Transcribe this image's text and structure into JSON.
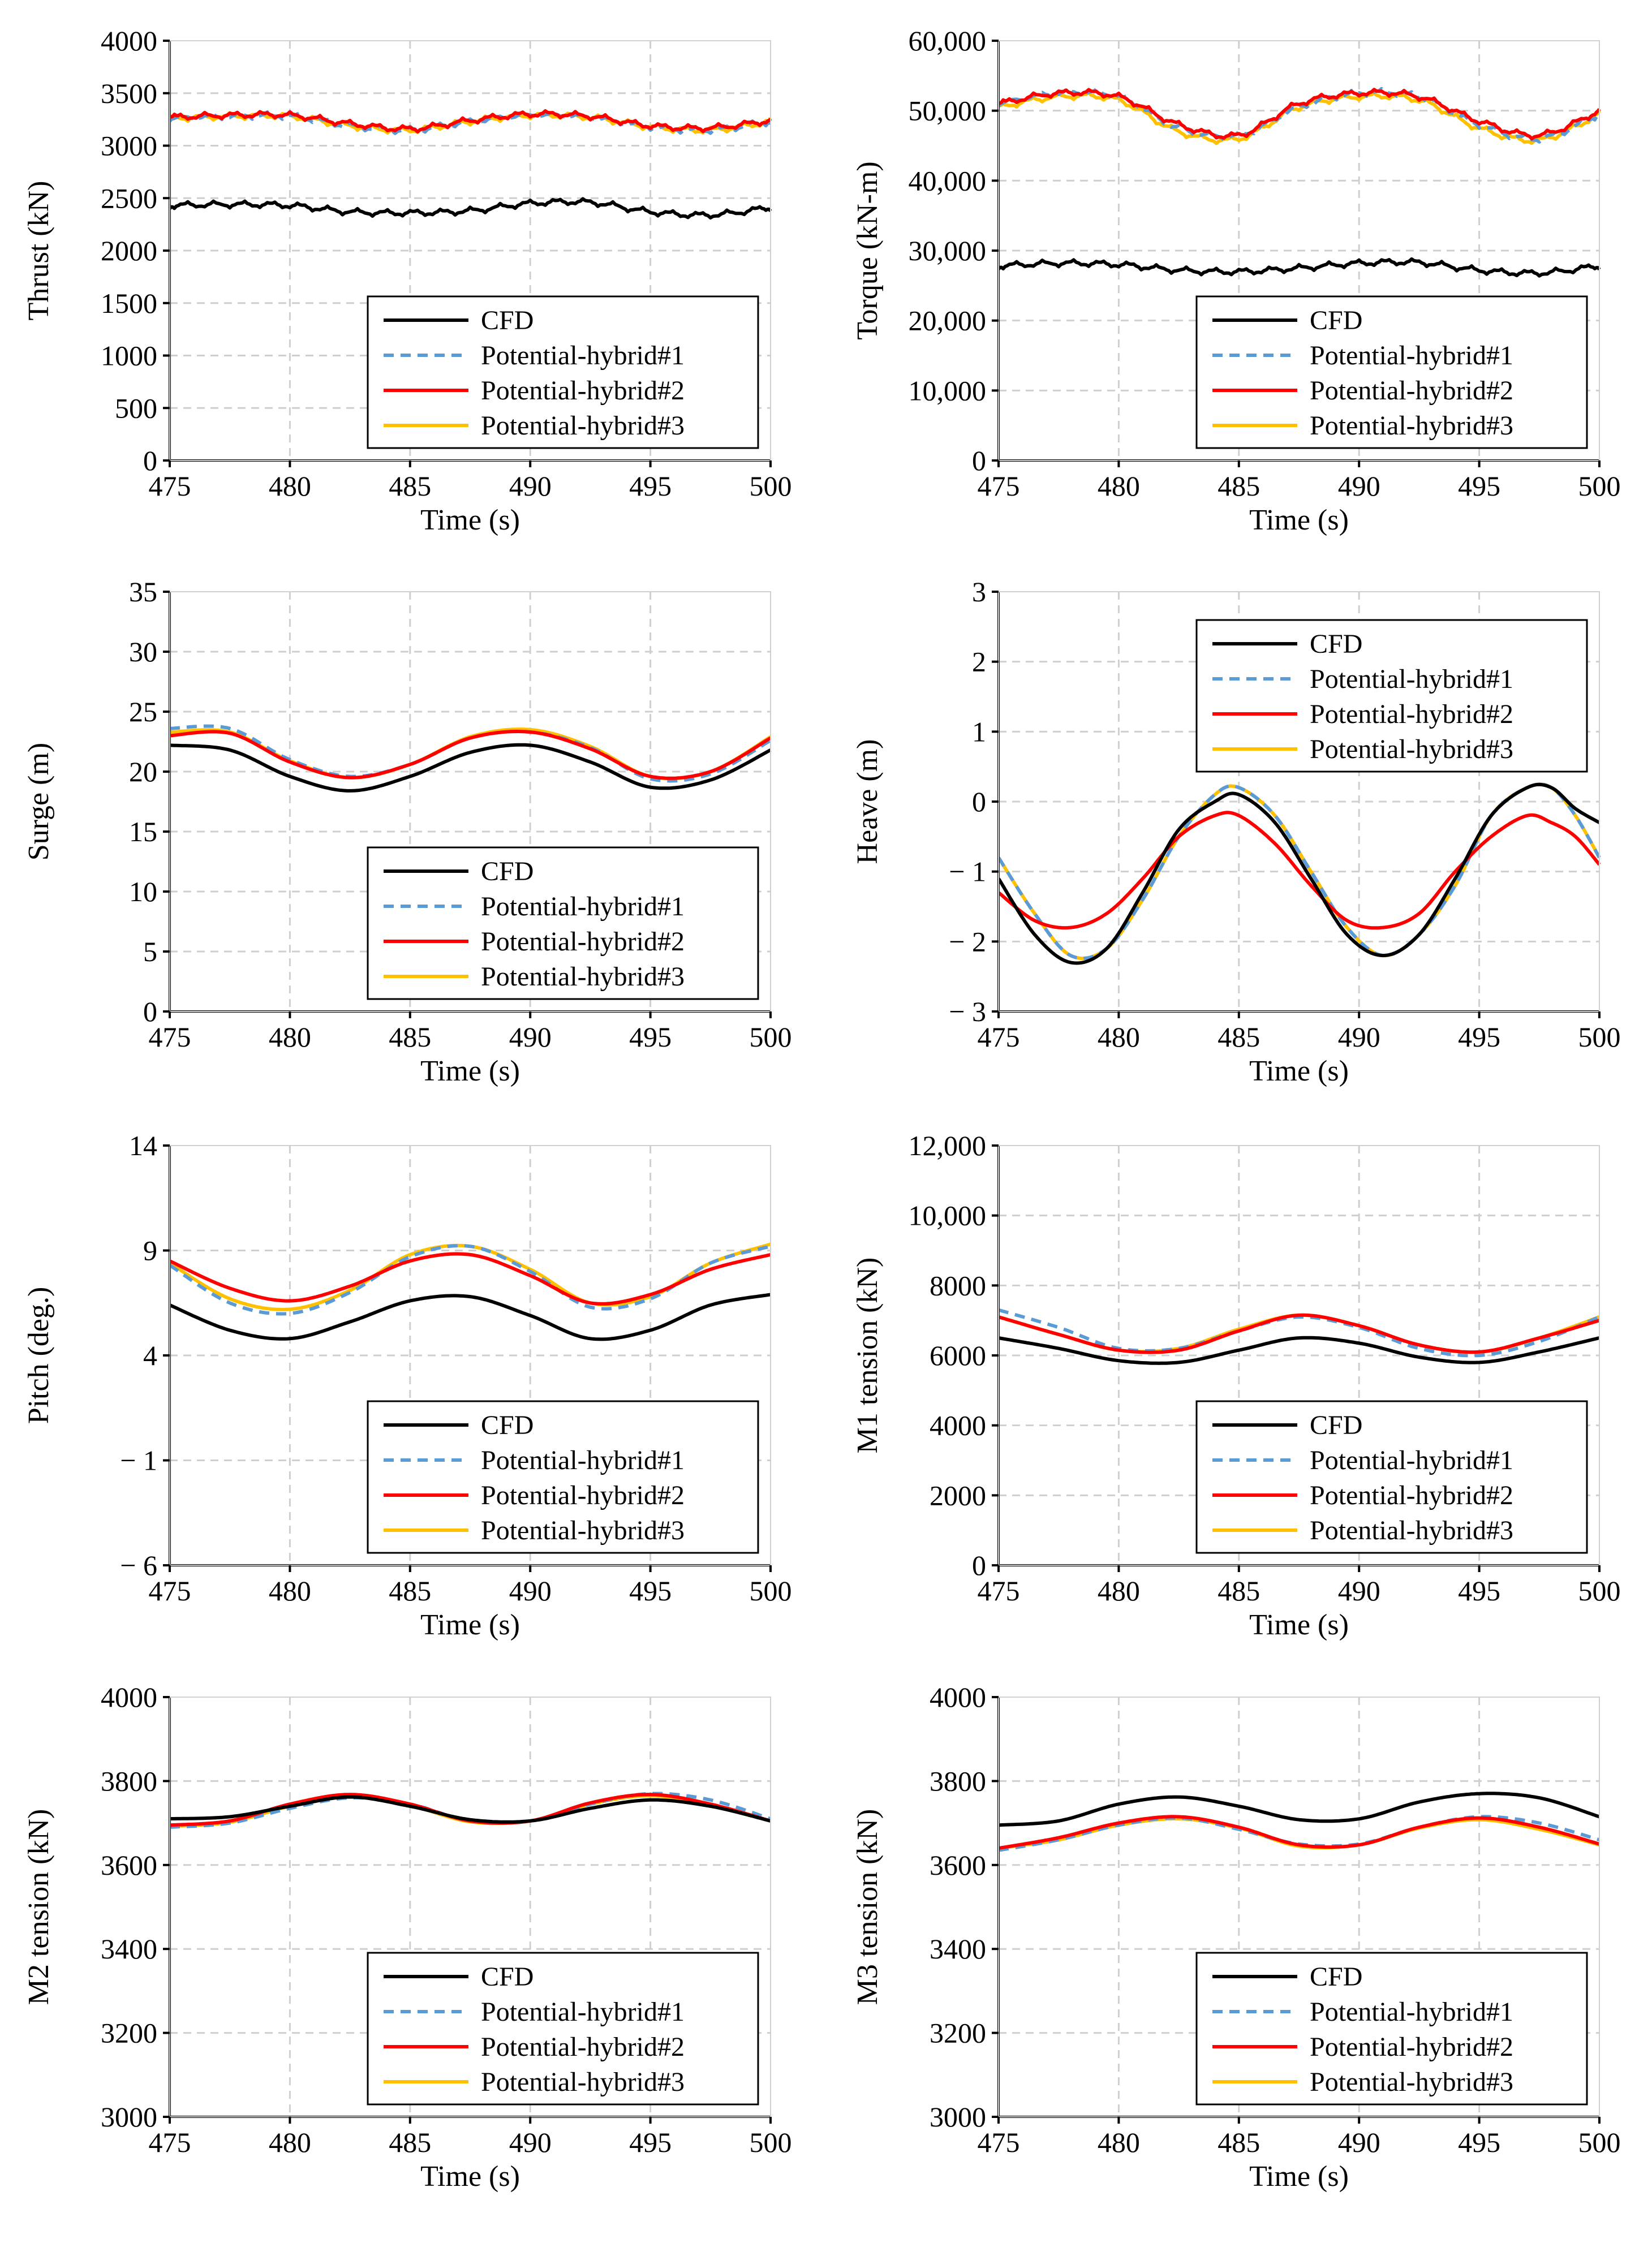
{
  "figure": {
    "series_names": [
      "CFD",
      "Potential-hybrid#1",
      "Potential-hybrid#2",
      "Potential-hybrid#3"
    ],
    "series_colors": [
      "#000000",
      "#5b9bd5",
      "#ff0000",
      "#ffc000"
    ],
    "series_dash": [
      "solid",
      "dashed",
      "solid",
      "solid"
    ]
  },
  "chart_data": [
    {
      "type": "line",
      "xlabel": "Time (s)",
      "ylabel": "Thrust (kN)",
      "xlim": [
        475,
        500
      ],
      "ylim": [
        0,
        4000
      ],
      "xticks": [
        475,
        480,
        485,
        490,
        495,
        500
      ],
      "xtick_labels": [
        "475",
        "480",
        "485",
        "490",
        "495",
        "500"
      ],
      "yticks": [
        0,
        500,
        1000,
        1500,
        2000,
        2500,
        3000,
        3500,
        4000
      ],
      "ytick_labels": [
        "0",
        "500",
        "1000",
        "1500",
        "2000",
        "2500",
        "3000",
        "3500",
        "4000"
      ],
      "legend_position": "bottom-right",
      "grid": true,
      "x": [
        475,
        477.5,
        480,
        482.5,
        485,
        487.5,
        490,
        492.5,
        495,
        497.5,
        500
      ],
      "series": [
        {
          "name": "CFD",
          "values": [
            2430,
            2440,
            2430,
            2370,
            2360,
            2380,
            2450,
            2460,
            2370,
            2340,
            2410
          ]
        },
        {
          "name": "Potential-hybrid#1",
          "values": [
            3260,
            3280,
            3280,
            3190,
            3150,
            3230,
            3290,
            3270,
            3180,
            3150,
            3230
          ]
        },
        {
          "name": "Potential-hybrid#2",
          "values": [
            3270,
            3290,
            3290,
            3210,
            3160,
            3240,
            3300,
            3280,
            3190,
            3170,
            3240
          ]
        },
        {
          "name": "Potential-hybrid#3",
          "values": [
            3260,
            3280,
            3280,
            3190,
            3150,
            3230,
            3290,
            3270,
            3180,
            3150,
            3230
          ]
        }
      ],
      "jitter": true
    },
    {
      "type": "line",
      "xlabel": "Time (s)",
      "ylabel": "Torque (kN-m)",
      "xlim": [
        475,
        500
      ],
      "ylim": [
        0,
        60000
      ],
      "xticks": [
        475,
        480,
        485,
        490,
        495,
        500
      ],
      "xtick_labels": [
        "475",
        "480",
        "485",
        "490",
        "495",
        "500"
      ],
      "yticks": [
        0,
        10000,
        20000,
        30000,
        40000,
        50000,
        60000
      ],
      "ytick_labels": [
        "0",
        "10,000",
        "20,000",
        "30,000",
        "40,000",
        "50,000",
        "60,000"
      ],
      "legend_position": "bottom-right",
      "grid": true,
      "x": [
        475,
        477.5,
        480,
        482.5,
        485,
        487.5,
        490,
        492.5,
        495,
        497.5,
        500
      ],
      "series": [
        {
          "name": "CFD",
          "values": [
            27800,
            28200,
            28000,
            27200,
            27000,
            27500,
            28200,
            28300,
            27200,
            26800,
            27800
          ]
        },
        {
          "name": "Potential-hybrid#1",
          "values": [
            51000,
            52500,
            52000,
            47500,
            46500,
            50500,
            52500,
            52000,
            48000,
            46000,
            49500
          ]
        },
        {
          "name": "Potential-hybrid#2",
          "values": [
            51000,
            52500,
            52000,
            48000,
            46500,
            51000,
            52500,
            52000,
            48500,
            46500,
            50000
          ]
        },
        {
          "name": "Potential-hybrid#3",
          "values": [
            50500,
            52000,
            51500,
            47000,
            46000,
            50500,
            52000,
            51500,
            47500,
            45800,
            49500
          ]
        }
      ],
      "jitter": true
    },
    {
      "type": "line",
      "xlabel": "Time (s)",
      "ylabel": "Surge (m)",
      "xlim": [
        475,
        500
      ],
      "ylim": [
        0,
        35
      ],
      "xticks": [
        475,
        480,
        485,
        490,
        495,
        500
      ],
      "xtick_labels": [
        "475",
        "480",
        "485",
        "490",
        "495",
        "500"
      ],
      "yticks": [
        0,
        5,
        10,
        15,
        20,
        25,
        30,
        35
      ],
      "ytick_labels": [
        "0",
        "5",
        "10",
        "15",
        "20",
        "25",
        "30",
        "35"
      ],
      "legend_position": "bottom-right",
      "grid": true,
      "x": [
        475,
        477.5,
        480,
        482.5,
        485,
        487.5,
        490,
        492.5,
        495,
        497.5,
        500
      ],
      "series": [
        {
          "name": "CFD",
          "values": [
            22.2,
            21.8,
            19.6,
            18.4,
            19.6,
            21.6,
            22.2,
            20.8,
            18.7,
            19.3,
            21.8
          ]
        },
        {
          "name": "Potential-hybrid#1",
          "values": [
            23.6,
            23.6,
            21.0,
            19.6,
            20.6,
            22.8,
            23.3,
            22.0,
            19.4,
            19.8,
            22.6
          ]
        },
        {
          "name": "Potential-hybrid#2",
          "values": [
            23.0,
            23.2,
            20.8,
            19.5,
            20.6,
            22.8,
            23.3,
            21.9,
            19.6,
            20.0,
            22.8
          ]
        },
        {
          "name": "Potential-hybrid#3",
          "values": [
            23.3,
            23.3,
            20.9,
            19.5,
            20.6,
            22.9,
            23.5,
            22.1,
            19.6,
            20.0,
            22.9
          ]
        }
      ],
      "jitter": false
    },
    {
      "type": "line",
      "xlabel": "Time (s)",
      "ylabel": "Heave (m)",
      "xlim": [
        475,
        500
      ],
      "ylim": [
        -3,
        3
      ],
      "xticks": [
        475,
        480,
        485,
        490,
        495,
        500
      ],
      "xtick_labels": [
        "475",
        "480",
        "485",
        "490",
        "495",
        "500"
      ],
      "yticks": [
        -3,
        -2,
        -1,
        0,
        1,
        2,
        3
      ],
      "ytick_labels": [
        "− 3",
        "− 2",
        "− 1",
        "0",
        "1",
        "2",
        "3"
      ],
      "legend_position": "top-right",
      "grid": true,
      "x": [
        475,
        476.5,
        478,
        479.5,
        481,
        482.5,
        484,
        485,
        486.5,
        488,
        489.5,
        491,
        492.5,
        494,
        495.5,
        497,
        498,
        499,
        500
      ],
      "series": [
        {
          "name": "CFD",
          "values": [
            -1.1,
            -1.9,
            -2.3,
            -2.1,
            -1.3,
            -0.4,
            0.0,
            0.1,
            -0.3,
            -1.1,
            -1.9,
            -2.2,
            -1.9,
            -1.1,
            -0.2,
            0.2,
            0.2,
            -0.1,
            -0.3
          ]
        },
        {
          "name": "Potential-hybrid#1",
          "values": [
            -0.8,
            -1.6,
            -2.2,
            -2.1,
            -1.4,
            -0.5,
            0.1,
            0.2,
            -0.2,
            -1.0,
            -1.8,
            -2.2,
            -1.9,
            -1.2,
            -0.2,
            0.2,
            0.2,
            -0.2,
            -0.8
          ]
        },
        {
          "name": "Potential-hybrid#2",
          "values": [
            -1.3,
            -1.7,
            -1.8,
            -1.6,
            -1.1,
            -0.5,
            -0.2,
            -0.2,
            -0.6,
            -1.2,
            -1.7,
            -1.8,
            -1.6,
            -1.0,
            -0.5,
            -0.2,
            -0.3,
            -0.5,
            -0.9
          ]
        },
        {
          "name": "Potential-hybrid#3",
          "values": [
            -0.8,
            -1.6,
            -2.2,
            -2.1,
            -1.4,
            -0.5,
            0.1,
            0.2,
            -0.2,
            -1.0,
            -1.8,
            -2.2,
            -1.9,
            -1.2,
            -0.2,
            0.2,
            0.2,
            -0.2,
            -0.8
          ]
        }
      ],
      "jitter": false
    },
    {
      "type": "line",
      "xlabel": "Time (s)",
      "ylabel": "Pitch (deg.)",
      "xlim": [
        475,
        500
      ],
      "ylim": [
        -6,
        14
      ],
      "xticks": [
        475,
        480,
        485,
        490,
        495,
        500
      ],
      "xtick_labels": [
        "475",
        "480",
        "485",
        "490",
        "495",
        "500"
      ],
      "yticks": [
        -6,
        -1,
        4,
        9,
        14
      ],
      "ytick_labels": [
        "− 6",
        "− 1",
        "4",
        "9",
        "14"
      ],
      "legend_position": "bottom-right",
      "grid": true,
      "x": [
        475,
        477.5,
        480,
        482.5,
        485,
        487.5,
        490,
        492.5,
        495,
        497.5,
        500
      ],
      "series": [
        {
          "name": "CFD",
          "values": [
            6.4,
            5.2,
            4.8,
            5.6,
            6.6,
            6.8,
            5.9,
            4.8,
            5.2,
            6.4,
            6.9
          ]
        },
        {
          "name": "Potential-hybrid#1",
          "values": [
            8.3,
            6.5,
            6.0,
            7.0,
            8.7,
            9.2,
            8.0,
            6.3,
            6.7,
            8.4,
            9.2
          ]
        },
        {
          "name": "Potential-hybrid#2",
          "values": [
            8.5,
            7.2,
            6.6,
            7.3,
            8.5,
            8.8,
            7.8,
            6.5,
            6.9,
            8.1,
            8.8
          ]
        },
        {
          "name": "Potential-hybrid#3",
          "values": [
            8.4,
            6.7,
            6.2,
            7.1,
            8.8,
            9.2,
            8.1,
            6.5,
            6.8,
            8.4,
            9.3
          ]
        }
      ],
      "jitter": false
    },
    {
      "type": "line",
      "xlabel": "Time (s)",
      "ylabel": "M1 tension (kN)",
      "xlim": [
        475,
        500
      ],
      "ylim": [
        0,
        12000
      ],
      "xticks": [
        475,
        480,
        485,
        490,
        495,
        500
      ],
      "xtick_labels": [
        "475",
        "480",
        "485",
        "490",
        "495",
        "500"
      ],
      "yticks": [
        0,
        2000,
        4000,
        6000,
        8000,
        10000,
        12000
      ],
      "ytick_labels": [
        "0",
        "2000",
        "4000",
        "6000",
        "8000",
        "10,000",
        "12,000"
      ],
      "legend_position": "bottom-right",
      "grid": true,
      "x": [
        475,
        477.5,
        480,
        482.5,
        485,
        487.5,
        490,
        492.5,
        495,
        497.5,
        500
      ],
      "series": [
        {
          "name": "CFD",
          "values": [
            6500,
            6200,
            5850,
            5800,
            6150,
            6500,
            6350,
            5950,
            5800,
            6100,
            6500
          ]
        },
        {
          "name": "Potential-hybrid#1",
          "values": [
            7300,
            6800,
            6200,
            6200,
            6700,
            7100,
            6800,
            6200,
            6000,
            6400,
            7100
          ]
        },
        {
          "name": "Potential-hybrid#2",
          "values": [
            7100,
            6600,
            6150,
            6150,
            6700,
            7150,
            6850,
            6300,
            6100,
            6500,
            7000
          ]
        },
        {
          "name": "Potential-hybrid#3",
          "values": [
            7100,
            6600,
            6150,
            6200,
            6750,
            7150,
            6850,
            6300,
            6100,
            6500,
            7100
          ]
        }
      ],
      "jitter": false
    },
    {
      "type": "line",
      "xlabel": "Time (s)",
      "ylabel": "M2 tension (kN)",
      "xlim": [
        475,
        500
      ],
      "ylim": [
        3000,
        4000
      ],
      "xticks": [
        475,
        480,
        485,
        490,
        495,
        500
      ],
      "xtick_labels": [
        "475",
        "480",
        "485",
        "490",
        "495",
        "500"
      ],
      "yticks": [
        3000,
        3200,
        3400,
        3600,
        3800,
        4000
      ],
      "ytick_labels": [
        "3000",
        "3200",
        "3400",
        "3600",
        "3800",
        "4000"
      ],
      "legend_position": "bottom-right",
      "grid": true,
      "x": [
        475,
        477.5,
        480,
        482.5,
        485,
        487.5,
        490,
        492.5,
        495,
        497.5,
        500
      ],
      "series": [
        {
          "name": "CFD",
          "values": [
            3710,
            3715,
            3740,
            3762,
            3740,
            3708,
            3705,
            3735,
            3755,
            3740,
            3705
          ]
        },
        {
          "name": "Potential-hybrid#1",
          "values": [
            3690,
            3700,
            3735,
            3760,
            3745,
            3705,
            3705,
            3745,
            3770,
            3755,
            3710
          ]
        },
        {
          "name": "Potential-hybrid#2",
          "values": [
            3695,
            3705,
            3745,
            3768,
            3745,
            3705,
            3705,
            3748,
            3768,
            3745,
            3705
          ]
        },
        {
          "name": "Potential-hybrid#3",
          "values": [
            3692,
            3702,
            3740,
            3765,
            3742,
            3703,
            3705,
            3745,
            3765,
            3742,
            3705
          ]
        }
      ],
      "jitter": false
    },
    {
      "type": "line",
      "xlabel": "Time (s)",
      "ylabel": "M3 tension (kN)",
      "xlim": [
        475,
        500
      ],
      "ylim": [
        3000,
        4000
      ],
      "xticks": [
        475,
        480,
        485,
        490,
        495,
        500
      ],
      "xtick_labels": [
        "475",
        "480",
        "485",
        "490",
        "495",
        "500"
      ],
      "yticks": [
        3000,
        3200,
        3400,
        3600,
        3800,
        4000
      ],
      "ytick_labels": [
        "3000",
        "3200",
        "3400",
        "3600",
        "3800",
        "4000"
      ],
      "legend_position": "bottom-right",
      "grid": true,
      "x": [
        475,
        477.5,
        480,
        482.5,
        485,
        487.5,
        490,
        492.5,
        495,
        497.5,
        500
      ],
      "series": [
        {
          "name": "CFD",
          "values": [
            3695,
            3705,
            3745,
            3762,
            3740,
            3708,
            3710,
            3750,
            3770,
            3760,
            3715
          ]
        },
        {
          "name": "Potential-hybrid#1",
          "values": [
            3635,
            3660,
            3695,
            3712,
            3685,
            3650,
            3650,
            3690,
            3715,
            3700,
            3660
          ]
        },
        {
          "name": "Potential-hybrid#2",
          "values": [
            3640,
            3665,
            3700,
            3715,
            3690,
            3648,
            3648,
            3690,
            3712,
            3690,
            3650
          ]
        },
        {
          "name": "Potential-hybrid#3",
          "values": [
            3640,
            3660,
            3695,
            3710,
            3688,
            3645,
            3648,
            3688,
            3708,
            3685,
            3648
          ]
        }
      ],
      "jitter": false
    }
  ]
}
